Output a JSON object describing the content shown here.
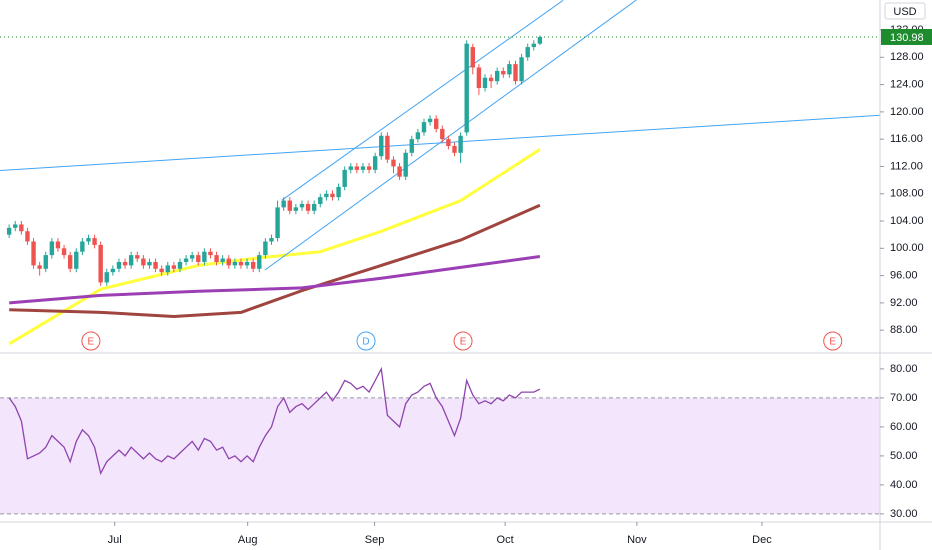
{
  "chart_data": {
    "type": "candlestick",
    "currency": "USD",
    "up_color": "#26a69a",
    "down_color": "#ef5350",
    "xlim": [
      -1.5,
      142.75
    ],
    "ylim": [
      84.8,
      136.4
    ],
    "yticks": [
      {
        "value": 88,
        "label": "88.00"
      },
      {
        "value": 92,
        "label": "92.00"
      },
      {
        "value": 96,
        "label": "96.00"
      },
      {
        "value": 100,
        "label": "100.00"
      },
      {
        "value": 104,
        "label": "104.00"
      },
      {
        "value": 108,
        "label": "108.00"
      },
      {
        "value": 112,
        "label": "112.00"
      },
      {
        "value": 116,
        "label": "116.00"
      },
      {
        "value": 120,
        "label": "120.00"
      },
      {
        "value": 124,
        "label": "124.00"
      },
      {
        "value": 128,
        "label": "128.00"
      },
      {
        "value": 132,
        "label": "132.00"
      }
    ],
    "xticks": [
      {
        "value": 17.3,
        "label": "Jul"
      },
      {
        "value": 39.1,
        "label": "Aug"
      },
      {
        "value": 59.9,
        "label": "Sep"
      },
      {
        "value": 81.3,
        "label": "Oct"
      },
      {
        "value": 102.9,
        "label": "Nov"
      },
      {
        "value": 123.4,
        "label": "Dec"
      }
    ],
    "open": [
      102,
      103,
      103.5,
      102.5,
      101,
      97.5,
      97,
      99,
      101,
      100,
      99,
      97,
      99.5,
      101,
      101.5,
      100.5,
      95,
      96.5,
      97,
      98,
      97.5,
      99,
      98.5,
      97.5,
      98,
      97,
      96.5,
      97.5,
      97,
      98,
      98.5,
      99,
      98,
      99.5,
      99,
      98,
      98.5,
      97.5,
      98,
      97.5,
      98,
      97,
      99,
      101,
      101.5,
      106,
      107,
      105.5,
      106,
      106.5,
      105.5,
      106.5,
      107.5,
      108,
      107.5,
      109,
      111.5,
      112,
      111.5,
      112,
      111.5,
      113.5,
      116.5,
      113,
      112,
      110.5,
      114,
      116,
      117,
      118.5,
      119,
      117.5,
      116,
      115,
      114,
      117,
      129.5,
      126.5,
      123.5,
      125,
      124.5,
      126,
      125.5,
      127,
      124.5,
      128,
      129.5,
      130
    ],
    "high": [
      103.5,
      104,
      104,
      103,
      101.5,
      98,
      99.5,
      101.5,
      101.5,
      100.5,
      99.5,
      100,
      101.5,
      102,
      102,
      101,
      97,
      97.5,
      98.5,
      98.5,
      99.5,
      99.5,
      99,
      98.5,
      98.5,
      97.5,
      98,
      98,
      98.5,
      99,
      99.5,
      99.5,
      100,
      100,
      99.5,
      99,
      99,
      98.5,
      98.5,
      98.5,
      98.5,
      99.5,
      101.5,
      102,
      107,
      107.5,
      107.5,
      106.5,
      107,
      107,
      107,
      108,
      108.5,
      108.5,
      109.5,
      112,
      112.5,
      112.5,
      112.5,
      112.5,
      114,
      117,
      117,
      113.5,
      112.5,
      114.5,
      116.5,
      117.5,
      119,
      119.5,
      119.5,
      118,
      116.5,
      115.5,
      117,
      130.5,
      130,
      127,
      125.5,
      125.5,
      126.5,
      126.5,
      127.5,
      127.5,
      128.5,
      130,
      130.5,
      131.2
    ],
    "low": [
      101.5,
      102.5,
      102,
      100.5,
      97,
      96,
      96.5,
      98.5,
      99.5,
      98.5,
      96.5,
      96.5,
      99,
      100.5,
      100,
      94.5,
      94.5,
      96,
      96.5,
      97,
      97,
      98,
      97,
      97,
      96.5,
      96,
      96,
      96.5,
      96.5,
      97.5,
      98,
      97.5,
      97.5,
      98.5,
      97.5,
      97.5,
      97,
      97,
      97,
      97,
      96.5,
      96.5,
      98.5,
      100.5,
      101,
      105.5,
      105,
      105,
      105.5,
      105,
      105,
      106,
      107,
      107,
      107,
      108.5,
      111,
      111,
      111,
      111,
      111,
      113,
      112.5,
      111,
      110,
      110,
      113.5,
      115.5,
      116.5,
      118,
      117,
      115.5,
      114.5,
      113.5,
      112.5,
      116.5,
      125.5,
      122.5,
      123,
      123.5,
      124,
      125,
      125,
      124,
      124,
      127.5,
      129,
      129.8
    ],
    "close": [
      103,
      103.5,
      102.5,
      101,
      97.5,
      97,
      99,
      101,
      100,
      99,
      97,
      99.5,
      101,
      101.5,
      100.5,
      95,
      96.5,
      97,
      98,
      97.5,
      99,
      98.5,
      97.5,
      98,
      97,
      96.5,
      97.5,
      97,
      98,
      98.5,
      99,
      98,
      99.5,
      99,
      98,
      98.5,
      97.5,
      98,
      97.5,
      98,
      97,
      99,
      101,
      101.5,
      106,
      107,
      105.5,
      106,
      106.5,
      105.5,
      106.5,
      107.5,
      108,
      107.5,
      109,
      111.5,
      112,
      111.5,
      112,
      111.5,
      113.5,
      116.5,
      113,
      112,
      110.5,
      114,
      116,
      117,
      118.5,
      119,
      117.5,
      116,
      115,
      114,
      116.5,
      130,
      126.5,
      123.5,
      125,
      124.5,
      126,
      125.5,
      127,
      124.5,
      128,
      129.5,
      130,
      130.98
    ],
    "last_price_color": "#1e8c2e",
    "moving_averages": [
      {
        "color": "#ffff3b",
        "x": [
          0,
          15,
          31,
          40,
          51,
          61,
          74,
          87
        ],
        "values": [
          86,
          94,
          97.5,
          98.5,
          99.5,
          102.5,
          107,
          114.5
        ]
      },
      {
        "color": "#a0443f",
        "x": [
          0,
          15,
          27,
          38,
          48,
          61,
          74,
          87
        ],
        "values": [
          91,
          90.6,
          90,
          90.6,
          93.8,
          97.5,
          101.2,
          106.3
        ]
      },
      {
        "color": "#9c3fb5",
        "x": [
          0,
          15,
          31,
          48,
          61,
          74,
          87
        ],
        "values": [
          92,
          93.1,
          93.7,
          94.2,
          95.6,
          97.2,
          98.8
        ]
      }
    ],
    "trendlines": [
      {
        "color": "#42a5f5",
        "x": [
          41.9,
          102.8
        ],
        "values": [
          96.8,
          136.4
        ]
      },
      {
        "color": "#42a5f5",
        "x": [
          44.7,
          90.8
        ],
        "values": [
          107.05,
          136.35
        ]
      },
      {
        "color": "#42a5f5",
        "x": [
          -1.5,
          142.8
        ],
        "values": [
          111.4,
          119.5
        ]
      }
    ],
    "events": [
      {
        "at": 13.4,
        "label": "E",
        "color": "#ef5350"
      },
      {
        "at": 58.5,
        "label": "D",
        "color": "#42a5f5"
      },
      {
        "at": 74.4,
        "label": "E",
        "color": "#ef5350"
      },
      {
        "at": 135,
        "label": "E",
        "color": "#ef5350"
      }
    ],
    "rsi": {
      "color": "#8e44ad",
      "band": [
        30,
        70
      ],
      "band_color": "#f3e5fc",
      "ylim": [
        27.2,
        84.8
      ],
      "yticks": [
        {
          "value": 80,
          "label": "80.00"
        },
        {
          "value": 70,
          "label": "70.00"
        },
        {
          "value": 60,
          "label": "60.00"
        },
        {
          "value": 50,
          "label": "50.00"
        },
        {
          "value": 40,
          "label": "40.00"
        },
        {
          "value": 30,
          "label": "30.00"
        }
      ],
      "values": [
        70,
        67,
        62,
        49,
        50,
        51,
        53,
        57,
        55,
        53,
        48,
        55,
        59,
        57,
        53,
        44,
        48,
        50,
        52,
        50,
        53,
        51,
        49,
        51,
        49,
        48,
        50,
        49,
        51,
        53,
        55,
        52,
        56,
        55,
        52,
        53,
        49,
        50,
        48,
        50,
        48,
        53,
        57,
        60,
        67,
        70,
        65,
        67,
        68,
        66,
        68,
        70,
        72,
        69,
        72,
        76,
        75,
        73,
        74,
        72,
        76,
        80,
        64,
        62,
        60,
        68,
        71,
        72,
        74,
        75,
        70,
        67,
        62,
        57,
        63,
        76,
        71,
        68,
        69,
        68,
        70,
        69,
        71,
        70,
        72,
        72,
        72,
        73
      ]
    }
  }
}
